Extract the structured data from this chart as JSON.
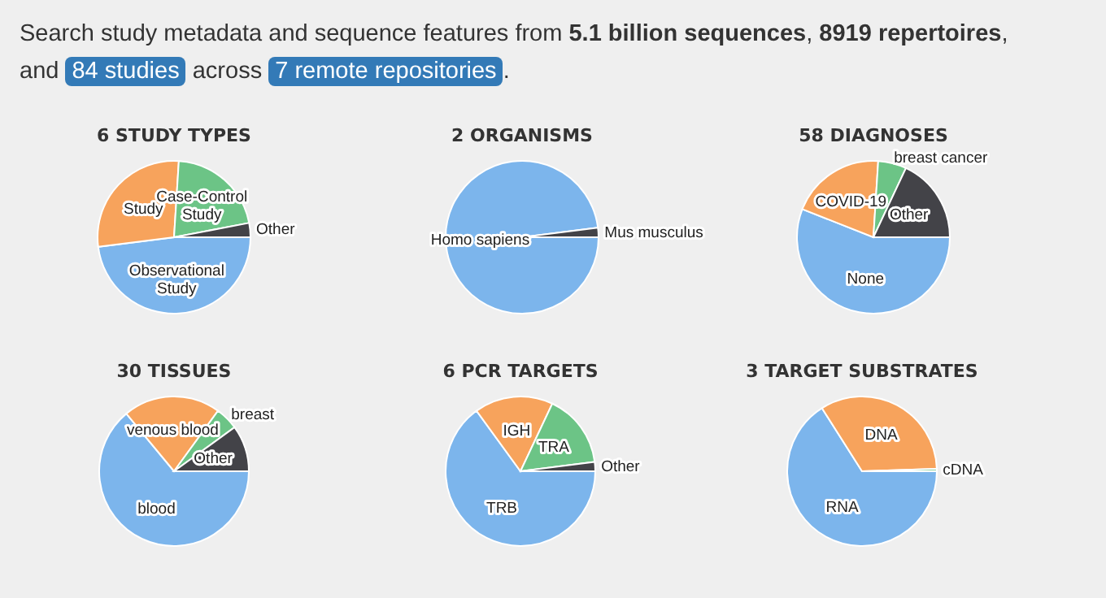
{
  "chart_data": [
    {
      "type": "other",
      "annotations": [
        "Search study metadata and sequence features from ",
        "5.1 billion sequences",
        ", ",
        "8919 repertoires",
        ", and ",
        "84 studies",
        " across ",
        "7 remote repositories",
        "."
      ]
    },
    {
      "type": "pie",
      "title": "6 STUDY TYPES",
      "categories": [
        "Observational Study",
        "Study",
        "Case-Control Study",
        "Other"
      ],
      "values": [
        48,
        28,
        21,
        3
      ],
      "colors": [
        "#7cb5ec",
        "#f7a35c",
        "#6cc486",
        "#434348"
      ]
    },
    {
      "type": "pie",
      "title": "2 ORGANISMS",
      "categories": [
        "Homo sapiens",
        "Mus musculus"
      ],
      "values": [
        98,
        2
      ],
      "colors": [
        "#7cb5ec",
        "#434348"
      ]
    },
    {
      "type": "pie",
      "title": "58 DIAGNOSES",
      "categories": [
        "None",
        "COVID-19",
        "breast cancer",
        "Other"
      ],
      "values": [
        56,
        20,
        6,
        18
      ],
      "colors": [
        "#7cb5ec",
        "#f7a35c",
        "#6cc486",
        "#434348"
      ]
    },
    {
      "type": "pie",
      "title": "30 TISSUES",
      "categories": [
        "blood",
        "venous blood",
        "breast",
        "Other"
      ],
      "values": [
        64,
        21,
        5,
        10
      ],
      "colors": [
        "#7cb5ec",
        "#f7a35c",
        "#6cc486",
        "#434348"
      ]
    },
    {
      "type": "pie",
      "title": "6 PCR TARGETS",
      "categories": [
        "TRB",
        "IGH",
        "TRA",
        "Other"
      ],
      "values": [
        65,
        17,
        16,
        2
      ],
      "colors": [
        "#7cb5ec",
        "#f7a35c",
        "#6cc486",
        "#434348"
      ]
    },
    {
      "type": "pie",
      "title": "3 TARGET SUBSTRATES",
      "categories": [
        "RNA",
        "DNA",
        "cDNA"
      ],
      "values": [
        66,
        33.5,
        0.5
      ],
      "colors": [
        "#7cb5ec",
        "#f7a35c",
        "#6cc486"
      ]
    }
  ]
}
